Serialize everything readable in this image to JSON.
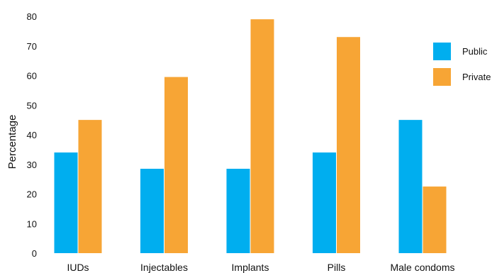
{
  "chart_data": {
    "type": "bar",
    "title": "",
    "xlabel": "",
    "ylabel": "Percentage",
    "ylim": [
      0,
      80
    ],
    "yticks": [
      0,
      10,
      20,
      30,
      40,
      50,
      60,
      70,
      80
    ],
    "grid": false,
    "legend_position": "top-right",
    "categories": [
      "IUDs",
      "Injectables",
      "Implants",
      "Pills",
      "Male condoms"
    ],
    "series": [
      {
        "name": "Public",
        "color": "#00aeef",
        "values": [
          34,
          28.5,
          28.5,
          34,
          45
        ]
      },
      {
        "name": "Private",
        "color": "#f7a535",
        "values": [
          45,
          59.5,
          79,
          73,
          22.5
        ]
      }
    ]
  }
}
